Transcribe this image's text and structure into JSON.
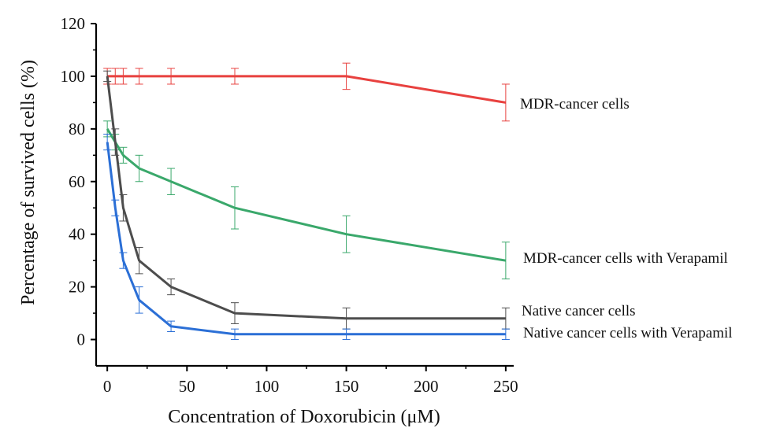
{
  "chart_data": {
    "type": "line",
    "xlabel": "Concentration of Doxorubicin (μM)",
    "ylabel": "Percentage of survived cells (%)",
    "xlim": [
      -7,
      255
    ],
    "ylim": [
      -10,
      120
    ],
    "xticks": [
      0,
      50,
      100,
      150,
      200,
      250
    ],
    "yticks": [
      0,
      20,
      40,
      60,
      80,
      100,
      120
    ],
    "grid": false,
    "legend": "inline labels at right end of each series",
    "series": [
      {
        "name": "MDR-cancer cells",
        "color": "#e8413f",
        "x": [
          0,
          5,
          10,
          20,
          40,
          80,
          150,
          250
        ],
        "y": [
          100,
          100,
          100,
          100,
          100,
          100,
          100,
          90
        ],
        "err": [
          3,
          3,
          3,
          3,
          3,
          3,
          5,
          7
        ]
      },
      {
        "name": "MDR-cancer cells with Verapamil",
        "color": "#3aa86b",
        "x": [
          0,
          5,
          10,
          20,
          40,
          80,
          150,
          250
        ],
        "y": [
          80,
          75,
          70,
          65,
          60,
          50,
          40,
          30
        ],
        "err": [
          3,
          3,
          3,
          5,
          5,
          8,
          7,
          7
        ]
      },
      {
        "name": "Native cancer cells",
        "color": "#4d4d4d",
        "x": [
          0,
          5,
          10,
          20,
          40,
          80,
          150,
          250
        ],
        "y": [
          100,
          75,
          50,
          30,
          20,
          10,
          8,
          8
        ],
        "err": [
          2,
          5,
          5,
          5,
          3,
          4,
          4,
          4
        ]
      },
      {
        "name": "Native cancer cells with Verapamil",
        "color": "#2b6fd6",
        "x": [
          0,
          5,
          10,
          20,
          40,
          80,
          150,
          250
        ],
        "y": [
          75,
          50,
          30,
          15,
          5,
          2,
          2,
          2
        ],
        "err": [
          3,
          3,
          3,
          5,
          2,
          2,
          2,
          2
        ]
      }
    ]
  }
}
